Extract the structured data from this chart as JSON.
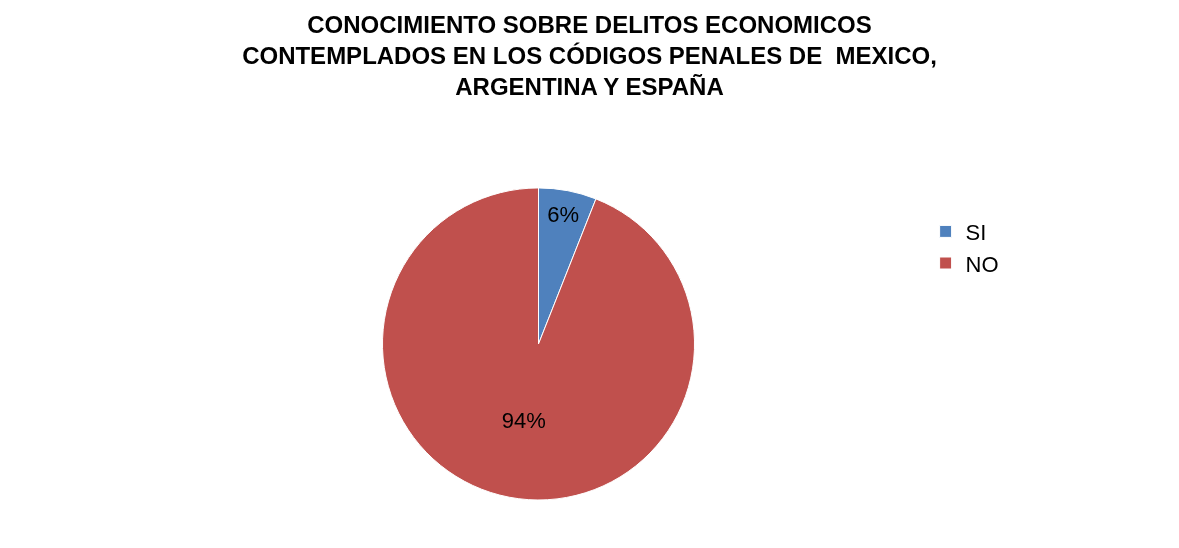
{
  "chart_data": {
    "type": "pie",
    "title": "CONOCIMIENTO SOBRE DELITOS ECONOMICOS\nCONTEMPLADOS EN LOS CÓDIGOS PENALES DE  MEXICO,\nARGENTINA Y ESPAÑA",
    "categories": [
      "SI",
      "NO"
    ],
    "values": [
      6,
      94
    ],
    "colors": [
      "#4f81bd",
      "#c0504d"
    ],
    "value_labels": [
      "6%",
      "94%"
    ],
    "legend": "right"
  }
}
